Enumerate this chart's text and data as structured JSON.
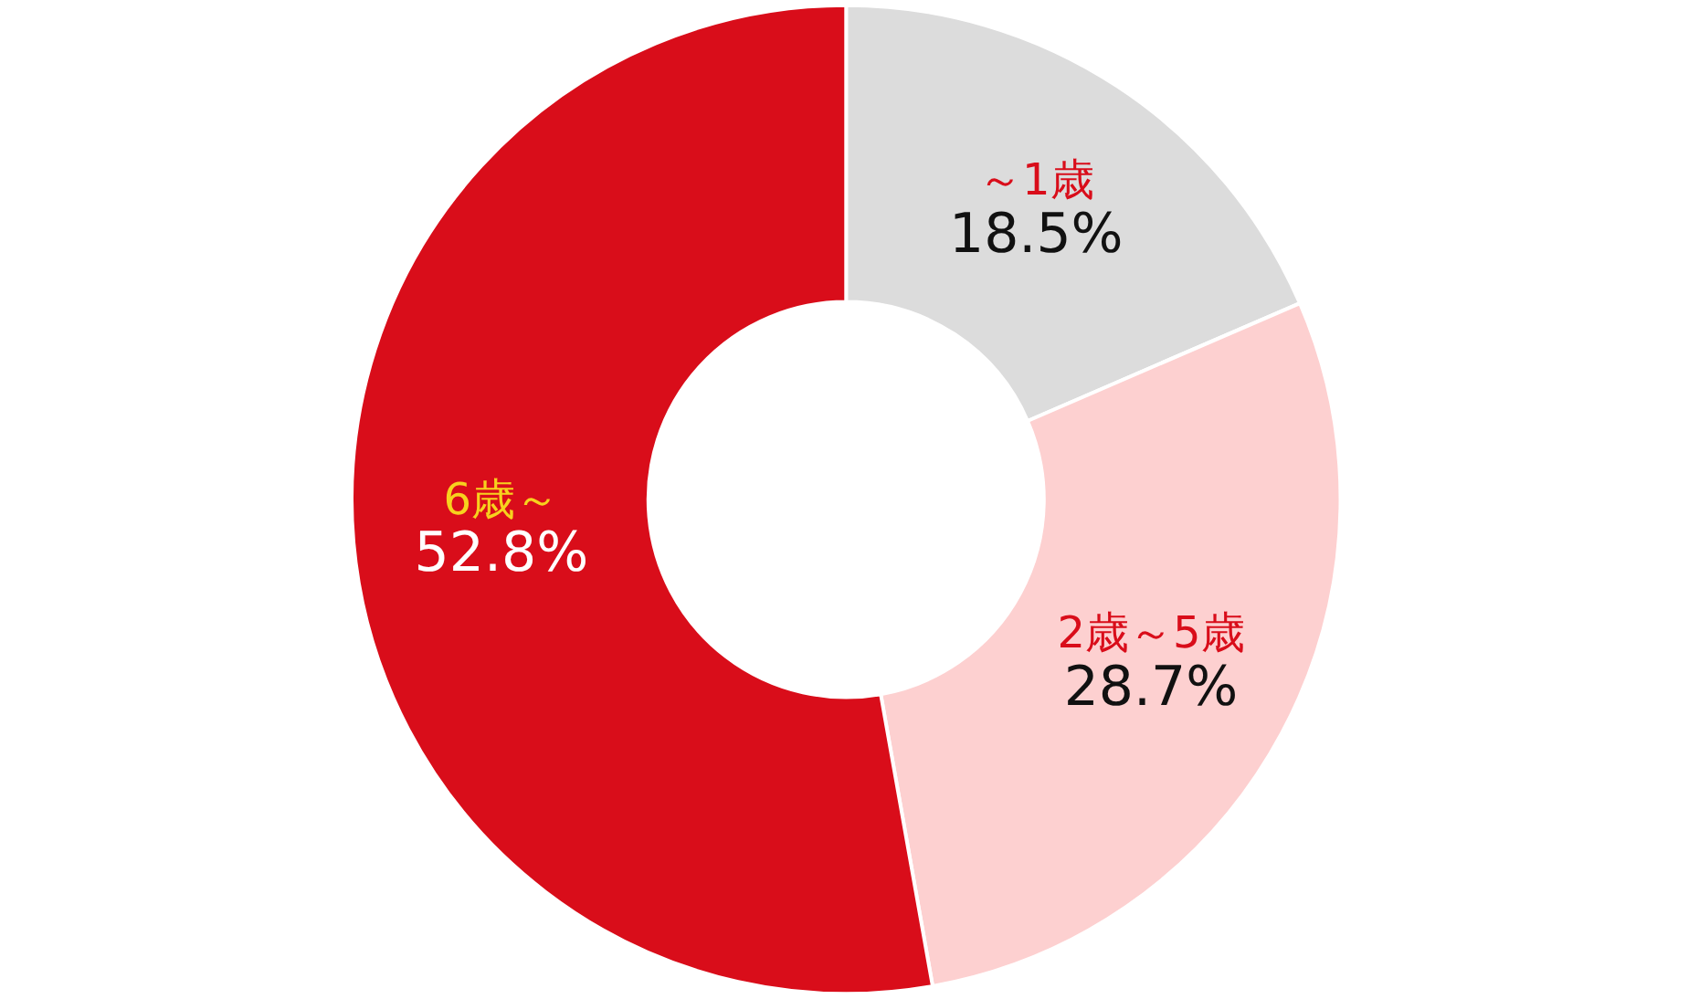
{
  "chart_data": {
    "type": "donut",
    "categories": [
      "～1歳",
      "2歳～5歳",
      "6歳～"
    ],
    "values": [
      18.5,
      28.7,
      52.8
    ],
    "value_labels": [
      "18.5%",
      "28.7%",
      "52.8%"
    ],
    "colors": [
      "#dcdcdc",
      "#fdd0d0",
      "#d90d1a"
    ]
  }
}
